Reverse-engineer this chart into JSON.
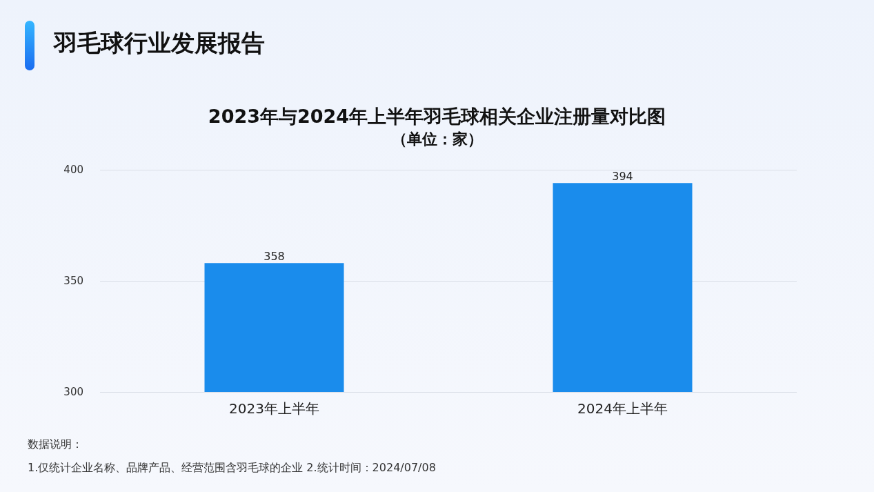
{
  "chart_data": {
    "type": "bar",
    "title": "2023年与2024年上半年羽毛球相关企业注册量对比图",
    "subtitle": "（单位：家）",
    "categories": [
      "2023年上半年",
      "2024年上半年"
    ],
    "values": [
      358,
      394
    ],
    "color": "#1a8cec",
    "ylim": [
      300,
      400
    ],
    "yticks": [
      300,
      350,
      400
    ],
    "grid": "y",
    "data_labels": true,
    "annotations": [
      "羽毛球行业发展报告",
      "数据说明：",
      "1.仅统计企业名称、品牌产品、经营范围含羽毛球的企业   2.统计时间：2024/07/08"
    ]
  }
}
